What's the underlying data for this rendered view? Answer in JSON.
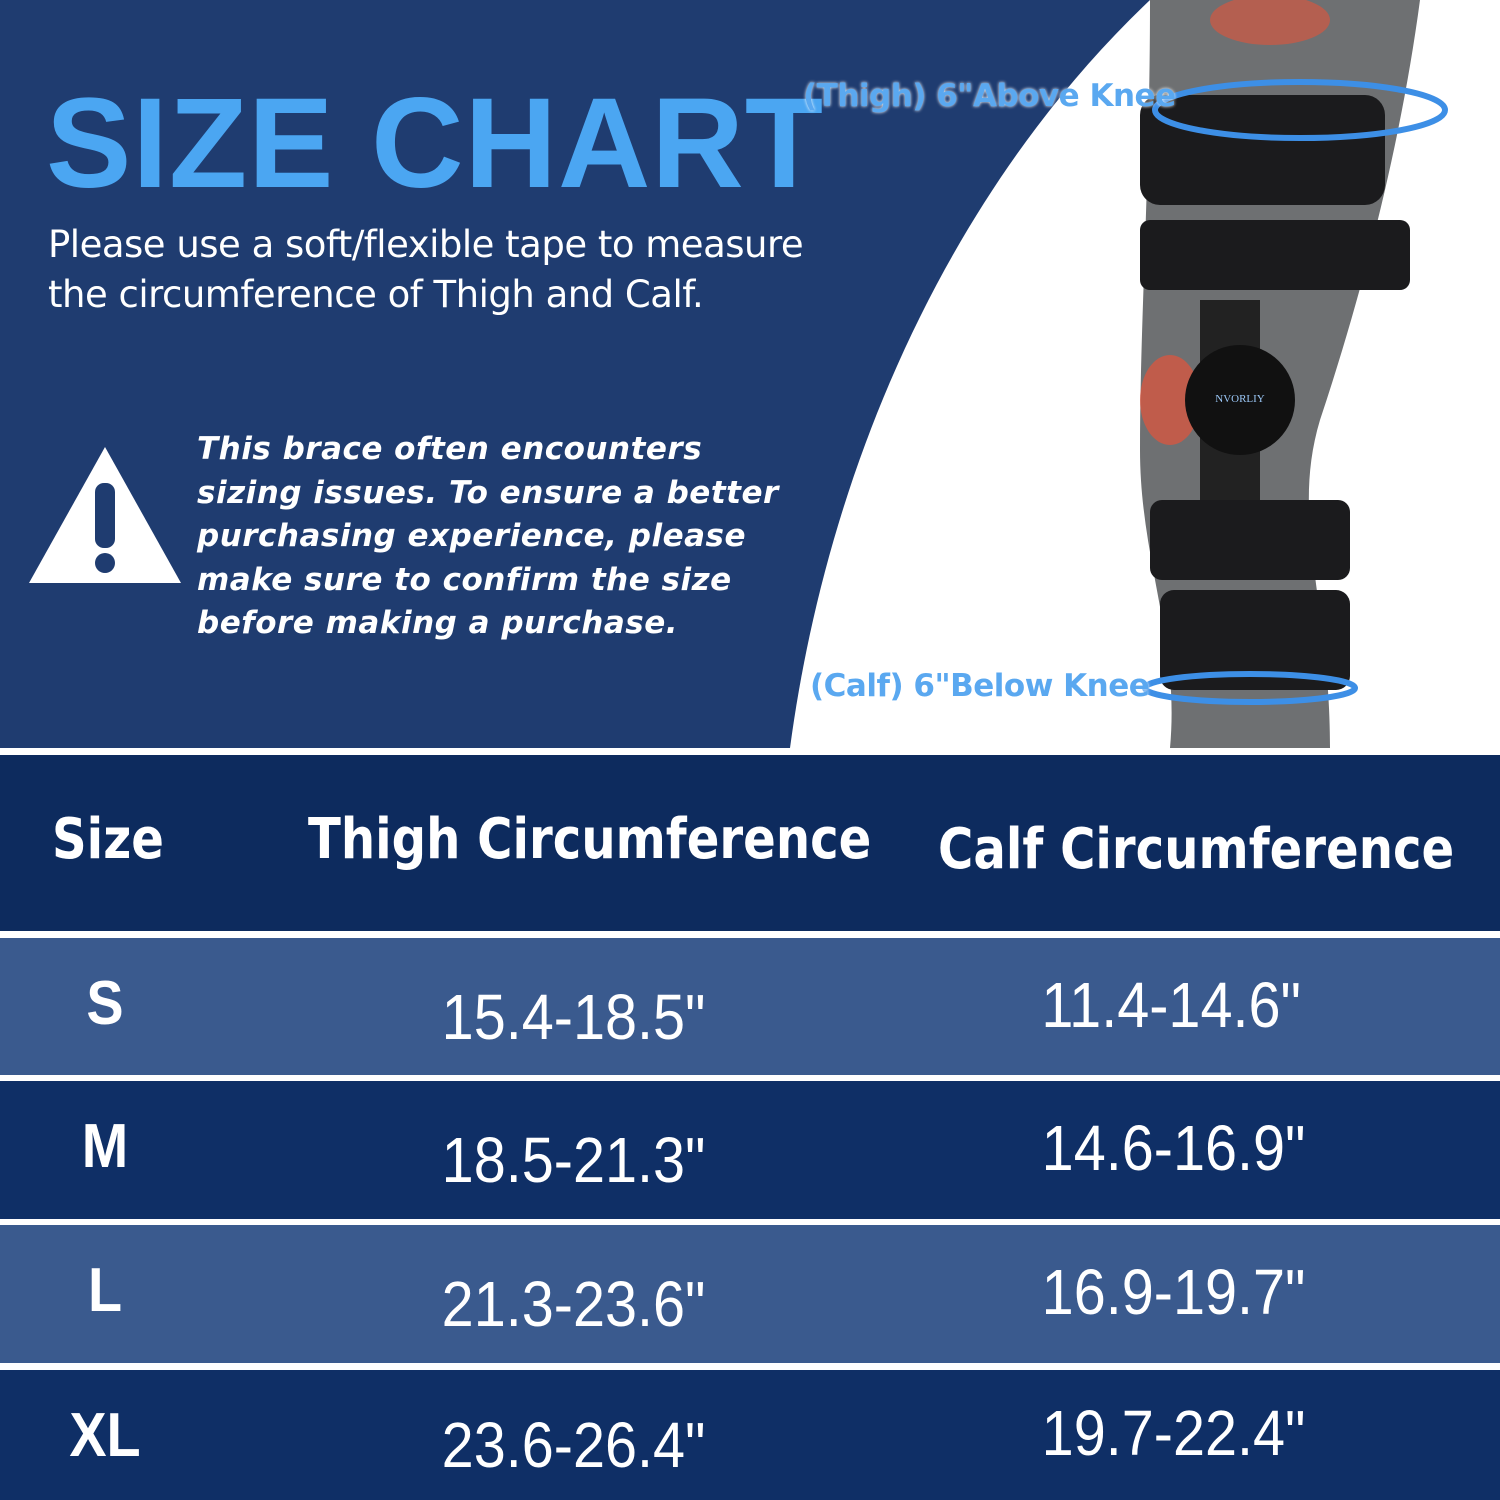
{
  "header": {
    "title": "SIZE CHART",
    "subtitle_line1": "Please use a soft/flexible tape to measure",
    "subtitle_line2": "the circumference of Thigh and Calf."
  },
  "warning": {
    "icon": "warning-triangle-icon",
    "lines": [
      "This brace often encounters",
      "sizing issues. To ensure a better",
      "purchasing experience, please",
      "make sure to confirm the size",
      "before making a purchase."
    ]
  },
  "illustration": {
    "thigh_label": "(Thigh) 6\"Above Knee",
    "calf_label": "(Calf) 6\"Below Knee",
    "brand": "NVORLIY"
  },
  "table": {
    "columns": [
      "Size",
      "Thigh Circumference",
      "Calf Circumference"
    ],
    "rows": [
      {
        "size": "S",
        "thigh": "15.4-18.5\"",
        "calf": "11.4-14.6\""
      },
      {
        "size": "M",
        "thigh": "18.5-21.3\"",
        "calf": "14.6-16.9\""
      },
      {
        "size": "L",
        "thigh": "21.3-23.6\"",
        "calf": "16.9-19.7\""
      },
      {
        "size": "XL",
        "thigh": "23.6-26.4\"",
        "calf": "19.7-22.4\""
      }
    ]
  },
  "colors": {
    "accent": "#4ba6f2",
    "navy": "#1f3c70",
    "row_light": "#3a5a8e",
    "row_dark": "#0f2f66",
    "header_row": "#0d2b5e"
  }
}
